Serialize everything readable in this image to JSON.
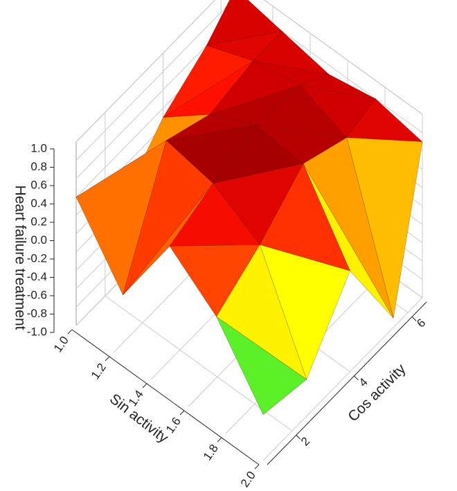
{
  "chart_data": {
    "type": "surface",
    "x_label": "Sin activity",
    "y_label": "Cos activity",
    "z_label": "Heart failure treatment",
    "x": [
      1.0,
      1.25,
      1.5,
      1.75,
      2.0
    ],
    "y": [
      1,
      2.5,
      4,
      5.5,
      6.5
    ],
    "z": [
      [
        0.4,
        -0.3,
        0.6,
        0.2,
        -0.5
      ],
      [
        -0.2,
        0.9,
        0.8,
        0.5,
        -0.6
      ],
      [
        0.3,
        0.7,
        0.95,
        0.9,
        0.1
      ],
      [
        0.6,
        0.8,
        0.9,
        0.7,
        -0.9
      ],
      [
        0.9,
        0.8,
        0.7,
        0.8,
        0.7
      ]
    ],
    "xlim": [
      1.0,
      2.0
    ],
    "xticks": [
      {
        "value": 1.0,
        "label": "1.0"
      },
      1.2,
      1.4,
      1.6,
      1.8,
      {
        "value": 2.0,
        "label": "2.0"
      }
    ],
    "ylim": [
      1,
      6.5
    ],
    "yticks": [
      2,
      4,
      6
    ],
    "zlim": [
      -1.0,
      1.0
    ],
    "zticks": [
      {
        "value": -1.0,
        "label": "-1.0"
      },
      -0.8,
      -0.6,
      -0.4,
      -0.2,
      {
        "value": 0.0,
        "label": "0.0"
      },
      0.2,
      0.4,
      0.6,
      0.8,
      {
        "value": 1.0,
        "label": "1.0"
      }
    ],
    "colormap": [
      "#7a00d6",
      "#2a20ff",
      "#00b8ff",
      "#00e050",
      "#b8ff00",
      "#ffff00",
      "#ffb000",
      "#ff5000",
      "#ff1000",
      "#d00000",
      "#6a0000"
    ],
    "grid": true
  }
}
